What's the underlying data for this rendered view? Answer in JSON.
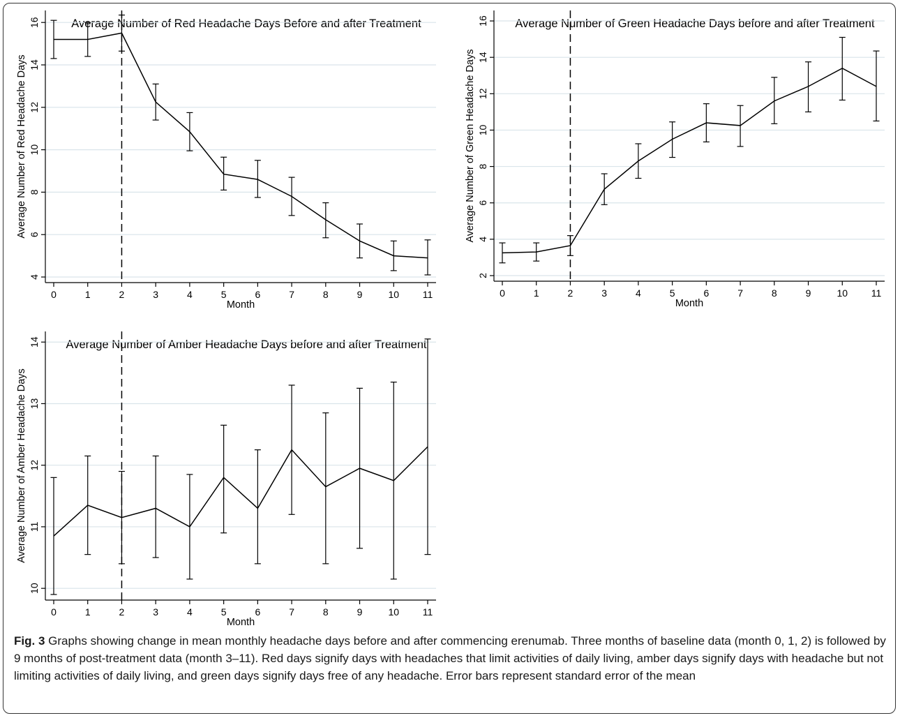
{
  "caption": {
    "label": "Fig. 3",
    "text": "Graphs showing change in mean monthly headache days before and after commencing erenumab. Three months of baseline data (month 0, 1, 2) is followed by 9 months of post-treatment data (month 3–11). Red days signify days with headaches that limit activities of daily living, amber days signify days with headache but not limiting activities of daily living, and green days signify days free of any headache. Error bars represent standard error of the mean"
  },
  "chart_data": [
    {
      "id": "red",
      "type": "line",
      "title": "Average Number of Red Headache Days Before and after Treatment",
      "xlabel": "Month",
      "ylabel": "Average Number of Red Headache Days",
      "x": [
        0,
        1,
        2,
        3,
        4,
        5,
        6,
        7,
        8,
        9,
        10,
        11
      ],
      "xlim": [
        0,
        11
      ],
      "ylim": [
        4,
        16.5
      ],
      "yticks": [
        4,
        6,
        8,
        10,
        12,
        14,
        16
      ],
      "treatment_line_x": 2,
      "grid": true,
      "series": [
        {
          "values": [
            15.2,
            15.2,
            15.5,
            12.25,
            10.85,
            8.85,
            8.6,
            7.8,
            6.7,
            5.7,
            5.0,
            4.9
          ],
          "lower": [
            14.3,
            14.4,
            14.65,
            11.4,
            9.95,
            8.1,
            7.75,
            6.9,
            5.85,
            4.9,
            4.3,
            4.1
          ],
          "upper": [
            16.1,
            16.0,
            16.35,
            13.1,
            11.75,
            9.65,
            9.5,
            8.7,
            7.5,
            6.5,
            5.7,
            5.75
          ]
        }
      ]
    },
    {
      "id": "green",
      "type": "line",
      "title": "Average Number of Green Headache Days before and after Treatment",
      "xlabel": "Month",
      "ylabel": "Average Number of Green Headache Days",
      "x": [
        0,
        1,
        2,
        3,
        4,
        5,
        6,
        7,
        8,
        9,
        10,
        11
      ],
      "xlim": [
        0,
        11
      ],
      "ylim": [
        2,
        16.5
      ],
      "yticks": [
        2,
        4,
        6,
        8,
        10,
        12,
        14,
        16
      ],
      "treatment_line_x": 2,
      "grid": true,
      "series": [
        {
          "values": [
            3.25,
            3.3,
            3.65,
            6.75,
            8.3,
            9.5,
            10.4,
            10.25,
            11.6,
            12.4,
            13.4,
            12.4
          ],
          "lower": [
            2.7,
            2.8,
            3.1,
            5.9,
            7.35,
            8.5,
            9.35,
            9.1,
            10.35,
            11.0,
            11.65,
            10.5
          ],
          "upper": [
            3.8,
            3.8,
            4.2,
            7.6,
            9.25,
            10.45,
            11.45,
            11.35,
            12.9,
            13.75,
            15.1,
            14.35
          ]
        }
      ]
    },
    {
      "id": "amber",
      "type": "line",
      "title": "Average Number of Amber Headache Days before and after Treatment",
      "xlabel": "Month",
      "ylabel": "Average Number of Amber Headache Days",
      "x": [
        0,
        1,
        2,
        3,
        4,
        5,
        6,
        7,
        8,
        9,
        10,
        11
      ],
      "xlim": [
        0,
        11
      ],
      "ylim": [
        9.9,
        14.15
      ],
      "yticks": [
        10,
        11,
        12,
        13,
        14
      ],
      "treatment_line_x": 2,
      "grid": true,
      "series": [
        {
          "values": [
            10.85,
            11.35,
            11.15,
            11.3,
            11.0,
            11.8,
            11.3,
            12.25,
            11.65,
            11.95,
            11.75,
            12.3
          ],
          "lower": [
            9.9,
            10.55,
            10.4,
            10.5,
            10.15,
            10.9,
            10.4,
            11.2,
            10.4,
            10.65,
            10.15,
            10.55
          ],
          "upper": [
            11.8,
            12.15,
            11.9,
            12.15,
            11.85,
            12.65,
            12.25,
            13.3,
            12.85,
            13.25,
            13.35,
            14.05
          ]
        }
      ]
    }
  ]
}
